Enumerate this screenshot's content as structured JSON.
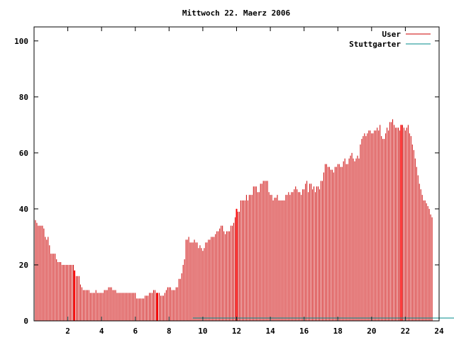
{
  "chart_data": {
    "type": "bar",
    "title": "Mittwoch 22. Maerz 2006",
    "xlabel": "",
    "ylabel": "",
    "xlim": [
      0,
      24
    ],
    "ylim": [
      0,
      105
    ],
    "x_ticks": [
      2,
      4,
      6,
      8,
      10,
      12,
      14,
      16,
      18,
      20,
      22,
      24
    ],
    "x_tick_labels": [
      "2",
      "4",
      "6",
      "8",
      "10",
      "12",
      "14",
      "16",
      "18",
      "20",
      "22",
      "24"
    ],
    "y_ticks": [
      0,
      20,
      40,
      60,
      80,
      100
    ],
    "y_tick_labels": [
      "0",
      "20",
      "40",
      "60",
      "80",
      "100"
    ],
    "grid": false,
    "legend_position": "top-right",
    "series": [
      {
        "name": "User",
        "color": "#cc0000",
        "sample_interval_minutes": 5,
        "start_hour": 0,
        "values": [
          40,
          36,
          35,
          34,
          34,
          34,
          34,
          33,
          30,
          29,
          30,
          27,
          24,
          24,
          24,
          24,
          22,
          21,
          21,
          21,
          20,
          20,
          20,
          20,
          20,
          20,
          20,
          20,
          20,
          18,
          16,
          16,
          16,
          13,
          12,
          11,
          11,
          11,
          11,
          11,
          10,
          10,
          10,
          10,
          11,
          10,
          10,
          10,
          10,
          10,
          11,
          11,
          11,
          12,
          12,
          12,
          11,
          11,
          11,
          10,
          10,
          10,
          10,
          10,
          10,
          10,
          10,
          10,
          10,
          10,
          10,
          10,
          10,
          8,
          8,
          8,
          8,
          8,
          8,
          9,
          9,
          9,
          10,
          10,
          10,
          11,
          11,
          10,
          10,
          10,
          9,
          9,
          9,
          10,
          11,
          12,
          12,
          12,
          11,
          11,
          11,
          12,
          12,
          15,
          15,
          17,
          20,
          22,
          29,
          29,
          30,
          28,
          28,
          28,
          29,
          28,
          28,
          26,
          27,
          26,
          25,
          26,
          28,
          28,
          29,
          29,
          30,
          30,
          30,
          31,
          32,
          32,
          33,
          34,
          34,
          32,
          31,
          32,
          32,
          32,
          34,
          34,
          35,
          37,
          40,
          39,
          39,
          43,
          43,
          43,
          43,
          45,
          43,
          45,
          45,
          45,
          48,
          48,
          48,
          46,
          46,
          49,
          49,
          50,
          50,
          50,
          50,
          46,
          45,
          45,
          43,
          44,
          44,
          45,
          43,
          43,
          43,
          43,
          43,
          45,
          45,
          46,
          45,
          46,
          46,
          47,
          48,
          47,
          46,
          46,
          45,
          47,
          47,
          49,
          50,
          46,
          49,
          49,
          47,
          48,
          46,
          48,
          48,
          47,
          50,
          50,
          53,
          56,
          56,
          55,
          55,
          54,
          54,
          53,
          55,
          55,
          56,
          56,
          55,
          55,
          57,
          58,
          56,
          56,
          58,
          59,
          60,
          58,
          57,
          58,
          59,
          58,
          63,
          65,
          66,
          67,
          66,
          67,
          68,
          68,
          67,
          67,
          68,
          68,
          69,
          68,
          70,
          66,
          65,
          65,
          67,
          69,
          68,
          71,
          71,
          72,
          70,
          69,
          69,
          69,
          68,
          70,
          70,
          69,
          68,
          69,
          70,
          67,
          66,
          63,
          61,
          58,
          55,
          52,
          49,
          47,
          45,
          43,
          43,
          42,
          41,
          40,
          38,
          37
        ]
      },
      {
        "name": "Stuttgarter",
        "color": "#008b8b",
        "sample_interval_minutes": 5,
        "start_hour": 9.4,
        "values": [
          1,
          1,
          1,
          1,
          1,
          1,
          1,
          1,
          1,
          1,
          1,
          1,
          1,
          1,
          1,
          1,
          1,
          1,
          1,
          1,
          1,
          1,
          1,
          1,
          1,
          1,
          1,
          1,
          1,
          1,
          1,
          1,
          1,
          1,
          1,
          1,
          1,
          1,
          1,
          1,
          1,
          1,
          1,
          1,
          1,
          1,
          1,
          1,
          1,
          1,
          1,
          1,
          1,
          1,
          1,
          1,
          1,
          1,
          1,
          1,
          1,
          1,
          1,
          1,
          1,
          1,
          1,
          1,
          1,
          1,
          1,
          1,
          1,
          1,
          1,
          1,
          1,
          1,
          1,
          1,
          1,
          1,
          1,
          1,
          1,
          1,
          1,
          1,
          1,
          1,
          1,
          1,
          1,
          1,
          1,
          1,
          1,
          1,
          1,
          1,
          1,
          1,
          1,
          1,
          1,
          1,
          1,
          1,
          1,
          1,
          1,
          1,
          1,
          1,
          1,
          1,
          1,
          1,
          1,
          1,
          1,
          1,
          1,
          1,
          1,
          1,
          1,
          1,
          1,
          1,
          1,
          1,
          1,
          1,
          1,
          1,
          1,
          1,
          1,
          1,
          1,
          1,
          1,
          1,
          1,
          1,
          1,
          1,
          1,
          1,
          1,
          1,
          1,
          1,
          1,
          1,
          1,
          1,
          1,
          1,
          1,
          1,
          1,
          1,
          1,
          1,
          1,
          1,
          1,
          1,
          1,
          1,
          1,
          1,
          1,
          1,
          1,
          1,
          1,
          1,
          1,
          1,
          1,
          1,
          1,
          1,
          1,
          1,
          1
        ]
      }
    ],
    "highlight_bars": {
      "color": "#ff0000",
      "x": [
        2.4,
        7.3,
        12.0,
        21.75
      ]
    }
  }
}
